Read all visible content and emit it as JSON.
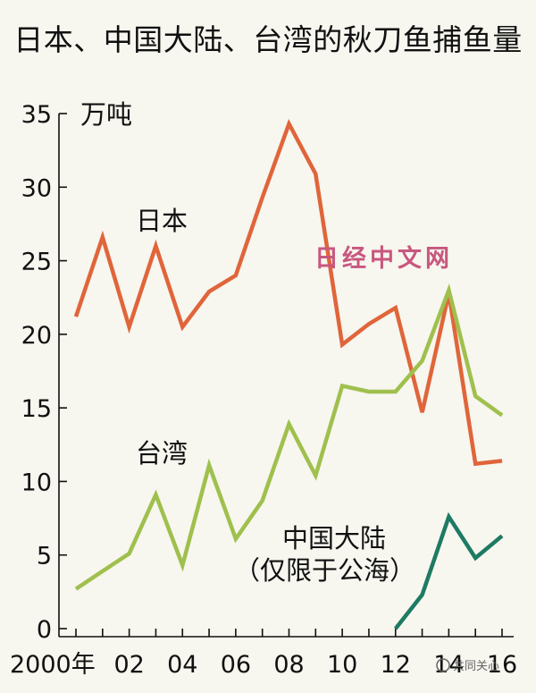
{
  "chart_data": {
    "type": "line",
    "title": "日本、中国大陆、台湾的秋刀鱼捕鱼量",
    "ylabel": "万吨",
    "ylim": [
      0,
      35
    ],
    "yticks": [
      "0",
      "5",
      "10",
      "15",
      "20",
      "25",
      "30",
      "35"
    ],
    "x": [
      2000,
      2001,
      2002,
      2003,
      2004,
      2005,
      2006,
      2007,
      2008,
      2009,
      2010,
      2011,
      2012,
      2013,
      2014,
      2015,
      2016
    ],
    "xtick_labels": [
      "2000年",
      "02",
      "04",
      "06",
      "08",
      "10",
      "12",
      "14",
      "16"
    ],
    "xtick_years": [
      2000,
      2002,
      2004,
      2006,
      2008,
      2010,
      2012,
      2014,
      2016
    ],
    "grid": false,
    "legend": "none",
    "series": [
      {
        "name": "日本",
        "color": "#e0653a",
        "x": [
          2000,
          2001,
          2002,
          2003,
          2004,
          2005,
          2006,
          2007,
          2008,
          2009,
          2010,
          2011,
          2012,
          2013,
          2014,
          2015,
          2016
        ],
        "values": [
          21.2,
          26.6,
          20.5,
          26.0,
          20.5,
          22.9,
          24.0,
          29.3,
          34.3,
          30.9,
          19.3,
          20.7,
          21.8,
          14.7,
          22.8,
          11.2,
          11.4
        ]
      },
      {
        "name": "台湾",
        "color": "#9fc04d",
        "x": [
          2000,
          2001,
          2002,
          2003,
          2004,
          2005,
          2006,
          2007,
          2008,
          2009,
          2010,
          2011,
          2012,
          2013,
          2014,
          2015,
          2016
        ],
        "values": [
          2.7,
          3.9,
          5.1,
          9.1,
          4.3,
          11.1,
          6.1,
          8.7,
          13.9,
          10.4,
          16.5,
          16.1,
          16.1,
          18.2,
          23.0,
          15.8,
          14.5
        ]
      },
      {
        "name": "中国大陆\n（仅限于公海）",
        "color": "#1e7a63",
        "x": [
          2012,
          2013,
          2014,
          2015,
          2016
        ],
        "values": [
          0.0,
          2.3,
          7.6,
          4.8,
          6.3
        ]
      }
    ],
    "annotations": {
      "japan": "日本",
      "taiwan": "台湾",
      "china_line1": "中国大陆",
      "china_line2": "（仅限于公海）"
    }
  },
  "watermark": "日经中文网",
  "source_badge": "共同关心"
}
